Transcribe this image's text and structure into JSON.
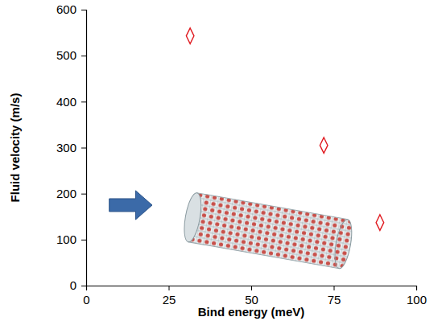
{
  "chart_data": {
    "type": "scatter",
    "x_label": "Bind energy (meV)",
    "y_label": "Fluid velocity (m/s)",
    "x": [
      31.5,
      72,
      89
    ],
    "values": [
      543,
      305,
      137
    ],
    "color": "#e0191f",
    "marker": "diamond",
    "xlim": [
      0,
      100
    ],
    "xticks": [
      0,
      25,
      50,
      75,
      100
    ],
    "ylim": [
      0,
      600
    ],
    "yticks": [
      0,
      100,
      200,
      300,
      400,
      500,
      600
    ],
    "grid": false
  }
}
